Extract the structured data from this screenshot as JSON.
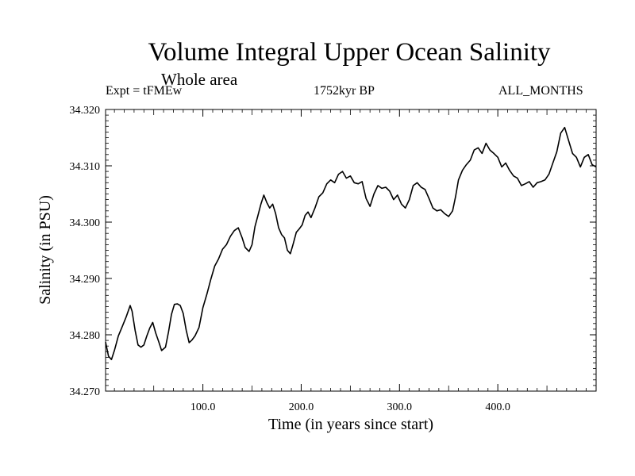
{
  "chart_data": {
    "type": "line",
    "title": "Volume Integral Upper Ocean Salinity",
    "subtitle": "Whole area",
    "header_left": "Expt = tFMEw",
    "header_center": "1752kyr BP",
    "header_right": "ALL_MONTHS",
    "xlabel": "Time (in years since start)",
    "ylabel": "Salinity (in PSU)",
    "xlim": [
      1,
      500
    ],
    "ylim": [
      34.27,
      34.32
    ],
    "x_ticks": [
      100,
      200,
      300,
      400
    ],
    "x_tick_labels": [
      "100.0",
      "200.0",
      "300.0",
      "400.0"
    ],
    "y_ticks": [
      34.27,
      34.28,
      34.29,
      34.3,
      34.31,
      34.32
    ],
    "y_tick_labels": [
      "34.270",
      "34.280",
      "34.290",
      "34.300",
      "34.310",
      "34.320"
    ],
    "series": [
      {
        "name": "salinity",
        "x": [
          1,
          4,
          7,
          10,
          14,
          18,
          22,
          26,
          28,
          31,
          34,
          37,
          40,
          43,
          46,
          49,
          52,
          55,
          58,
          62,
          65,
          68,
          71,
          74,
          77,
          80,
          83,
          86,
          89,
          92,
          96,
          100,
          104,
          108,
          112,
          116,
          120,
          124,
          128,
          132,
          136,
          140,
          143,
          147,
          150,
          153,
          156,
          159,
          162,
          165,
          168,
          171,
          174,
          177,
          180,
          183,
          186,
          189,
          192,
          195,
          198,
          201,
          204,
          207,
          210,
          214,
          218,
          222,
          226,
          230,
          234,
          238,
          242,
          246,
          250,
          254,
          258,
          262,
          266,
          270,
          274,
          278,
          282,
          286,
          290,
          294,
          298,
          302,
          306,
          310,
          314,
          318,
          322,
          326,
          330,
          334,
          338,
          342,
          346,
          350,
          354,
          357,
          360,
          364,
          368,
          372,
          376,
          380,
          384,
          388,
          392,
          396,
          400,
          404,
          408,
          412,
          416,
          420,
          424,
          428,
          432,
          436,
          440,
          444,
          448,
          452,
          456,
          460,
          464,
          468,
          472,
          476,
          480,
          484,
          488,
          492,
          496,
          500
        ],
        "values": [
          34.2787,
          34.2762,
          34.2756,
          34.2772,
          34.2798,
          34.2815,
          34.2832,
          34.2852,
          34.2842,
          34.2808,
          34.2782,
          34.2778,
          34.2782,
          34.2798,
          34.2812,
          34.2822,
          34.2803,
          34.2788,
          34.2772,
          34.2778,
          34.2805,
          34.2836,
          34.2854,
          34.2855,
          34.2852,
          34.2838,
          34.2808,
          34.2786,
          34.2791,
          34.2798,
          34.2813,
          34.2848,
          34.2872,
          34.2898,
          34.2922,
          34.2935,
          34.2952,
          34.296,
          34.2975,
          34.2985,
          34.299,
          34.2972,
          34.2955,
          34.2948,
          34.296,
          34.2992,
          34.3012,
          34.3032,
          34.3048,
          34.3035,
          34.3025,
          34.3032,
          34.3015,
          34.299,
          34.2978,
          34.2972,
          34.295,
          34.2944,
          34.2962,
          34.2982,
          34.2988,
          34.2995,
          34.3012,
          34.3018,
          34.3008,
          34.3025,
          34.3045,
          34.3052,
          34.3068,
          34.3075,
          34.307,
          34.3085,
          34.309,
          34.3078,
          34.3082,
          34.307,
          34.3068,
          34.3072,
          34.3042,
          34.3028,
          34.305,
          34.3065,
          34.306,
          34.3062,
          34.3055,
          34.304,
          34.3048,
          34.3032,
          34.3025,
          34.304,
          34.3065,
          34.307,
          34.3062,
          34.3058,
          34.3042,
          34.3025,
          34.302,
          34.3022,
          34.3015,
          34.301,
          34.302,
          34.3045,
          34.3075,
          34.3092,
          34.3102,
          34.311,
          34.3128,
          34.3132,
          34.3122,
          34.314,
          34.3128,
          34.3122,
          34.3115,
          34.3098,
          34.3105,
          34.3092,
          34.3082,
          34.3078,
          34.3065,
          34.3068,
          34.3072,
          34.3062,
          34.307,
          34.3072,
          34.3075,
          34.3085,
          34.3105,
          34.3125,
          34.3158,
          34.3168,
          34.3145,
          34.3122,
          34.3115,
          34.3098,
          34.3115,
          34.312,
          34.3102,
          34.3098
        ]
      }
    ]
  }
}
